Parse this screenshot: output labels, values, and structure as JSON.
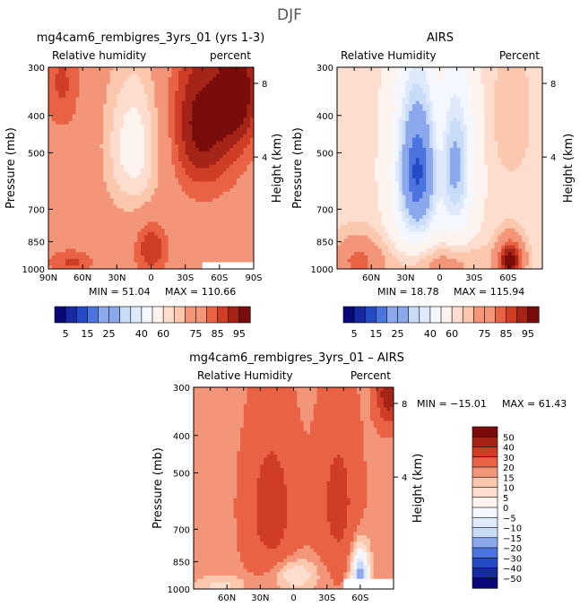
{
  "page_title": "DJF",
  "colors": {
    "blue_dark": "#08087a",
    "blue_mid": "#2c5ad8",
    "blue_light": "#c8dcf8",
    "white": "#ffffff",
    "orange_light": "#fcc8ad",
    "red_mid": "#e4492a",
    "red_dark": "#7a0c0c"
  },
  "chart_data": [
    {
      "type": "contour",
      "title": "mg4cam6_rembigres_3yrs_01 (yrs 1-3)",
      "subtitle_left": "Relative humidity",
      "subtitle_right": "percent",
      "ylabel": "Pressure (mb)",
      "ylabel_right": "Height (km)",
      "x_ticks": [
        "90N",
        "60N",
        "30N",
        "0",
        "30S",
        "60S",
        "90S"
      ],
      "x_range": [
        90,
        -90
      ],
      "y_ticks": [
        300,
        400,
        500,
        700,
        850,
        1000
      ],
      "y_range": [
        300,
        1000
      ],
      "height_ticks": [
        8,
        4
      ],
      "stats": {
        "min_label": "MIN =",
        "min": "51.04",
        "max_label": "MAX =",
        "max": "110.66"
      },
      "colorbar": {
        "orientation": "horizontal",
        "tick_labels": [
          "5",
          "15",
          "25",
          "40",
          "60",
          "75",
          "85",
          "95"
        ],
        "levels": [
          5,
          10,
          15,
          20,
          25,
          30,
          35,
          40,
          50,
          60,
          65,
          70,
          75,
          80,
          85,
          90,
          95
        ]
      },
      "field": {
        "base": 76,
        "features": [
          {
            "lat": 15,
            "p": 480,
            "slat": 26,
            "sp": 220,
            "amp": -20,
            "note": "dry upper tropics"
          },
          {
            "lat": -45,
            "p": 420,
            "slat": 30,
            "sp": 190,
            "amp": 22,
            "note": "moist SH upper"
          },
          {
            "lat": -78,
            "p": 340,
            "slat": 18,
            "sp": 130,
            "amp": 20,
            "note": "moist SH polar"
          },
          {
            "lat": 78,
            "p": 330,
            "slat": 16,
            "sp": 100,
            "amp": 10,
            "note": "moist NH polar"
          },
          {
            "lat": 0,
            "p": 880,
            "slat": 14,
            "sp": 140,
            "amp": 14,
            "note": "moist equator lower"
          },
          {
            "lat": 70,
            "p": 960,
            "slat": 20,
            "sp": 70,
            "amp": 10,
            "note": "moist NH surface"
          }
        ],
        "mask": {
          "lat_from": -45,
          "lat_to": -90,
          "p_from": 960,
          "p_to": 1000
        }
      }
    },
    {
      "type": "contour",
      "title": "AIRS",
      "subtitle_left": "Relative Humidity",
      "subtitle_right": "Percent",
      "ylabel": "Pressure (mb)",
      "ylabel_right": "Height (km)",
      "x_ticks": [
        "60N",
        "30N",
        "0",
        "30S",
        "60S"
      ],
      "x_range": [
        90,
        -90
      ],
      "y_ticks": [
        300,
        400,
        500,
        700,
        850,
        1000
      ],
      "y_range": [
        300,
        1000
      ],
      "height_ticks": [
        8,
        4
      ],
      "stats": {
        "min_label": "MIN =",
        "min": "18.78",
        "max_label": "MAX =",
        "max": "115.94"
      },
      "colorbar": {
        "orientation": "horizontal",
        "tick_labels": [
          "5",
          "15",
          "25",
          "40",
          "60",
          "75",
          "85",
          "95"
        ],
        "levels": [
          5,
          10,
          15,
          20,
          25,
          30,
          35,
          40,
          50,
          60,
          65,
          70,
          75,
          80,
          85,
          90,
          95
        ]
      },
      "field": {
        "base": 62,
        "features": [
          {
            "lat": 20,
            "p": 560,
            "slat": 20,
            "sp": 300,
            "amp": -48,
            "note": "dry NH subtropics"
          },
          {
            "lat": -15,
            "p": 540,
            "slat": 16,
            "sp": 280,
            "amp": -32,
            "note": "dry SH subtropics"
          },
          {
            "lat": -63,
            "p": 400,
            "slat": 16,
            "sp": 160,
            "amp": 8,
            "note": "moist SH upper"
          },
          {
            "lat": 0,
            "p": 480,
            "slat": 7,
            "sp": 260,
            "amp": 8,
            "note": "moist equator column"
          },
          {
            "lat": 72,
            "p": 960,
            "slat": 22,
            "sp": 150,
            "amp": 20,
            "note": "moist NH surface"
          },
          {
            "lat": -62,
            "p": 950,
            "slat": 12,
            "sp": 130,
            "amp": 36,
            "note": "moist SH surface"
          },
          {
            "lat": 0,
            "p": 960,
            "slat": 40,
            "sp": 120,
            "amp": 14,
            "note": "moist tropical surface"
          }
        ],
        "mask": null
      }
    },
    {
      "type": "contour",
      "title": "mg4cam6_rembigres_3yrs_01 – AIRS",
      "subtitle_left": "Relative Humidity",
      "subtitle_right": "Percent",
      "ylabel": "Pressure (mb)",
      "ylabel_right": "Height (km)",
      "x_ticks": [
        "60N",
        "30N",
        "0",
        "30S",
        "60S"
      ],
      "x_range": [
        90,
        -90
      ],
      "y_ticks": [
        300,
        400,
        500,
        700,
        850,
        1000
      ],
      "y_range": [
        300,
        1000
      ],
      "height_ticks": [
        8,
        4
      ],
      "stats": {
        "min_label": "MIN =",
        "min": "−15.01",
        "max_label": "MAX =",
        "max": "61.43"
      },
      "colorbar": {
        "orientation": "vertical",
        "tick_labels": [
          "50",
          "40",
          "30",
          "20",
          "15",
          "10",
          "5",
          "0",
          "−5",
          "−10",
          "−15",
          "−20",
          "−30",
          "−40",
          "−50"
        ],
        "levels": [
          -50,
          -40,
          -30,
          -20,
          -15,
          -10,
          -5,
          0,
          5,
          10,
          15,
          20,
          30,
          40,
          50
        ]
      },
      "field": {
        "base": 18,
        "features": [
          {
            "lat": 20,
            "p": 620,
            "slat": 22,
            "sp": 280,
            "amp": 18,
            "note": "positive NH subtropics"
          },
          {
            "lat": -40,
            "p": 600,
            "slat": 18,
            "sp": 280,
            "amp": 16,
            "note": "positive SH subtropics"
          },
          {
            "lat": -85,
            "p": 310,
            "slat": 10,
            "sp": 60,
            "amp": 30,
            "note": "SH polar top"
          },
          {
            "lat": 0,
            "p": 920,
            "slat": 22,
            "sp": 90,
            "amp": -14,
            "note": "near-zero tropical surface"
          },
          {
            "lat": -60,
            "p": 920,
            "slat": 8,
            "sp": 150,
            "amp": -38,
            "note": "negative SH lower"
          },
          {
            "lat": 65,
            "p": 980,
            "slat": 22,
            "sp": 60,
            "amp": -10,
            "note": "weak NH surface"
          }
        ],
        "mask": {
          "lat_from": -45,
          "lat_to": -90,
          "p_from": 940,
          "p_to": 1000
        }
      }
    }
  ]
}
